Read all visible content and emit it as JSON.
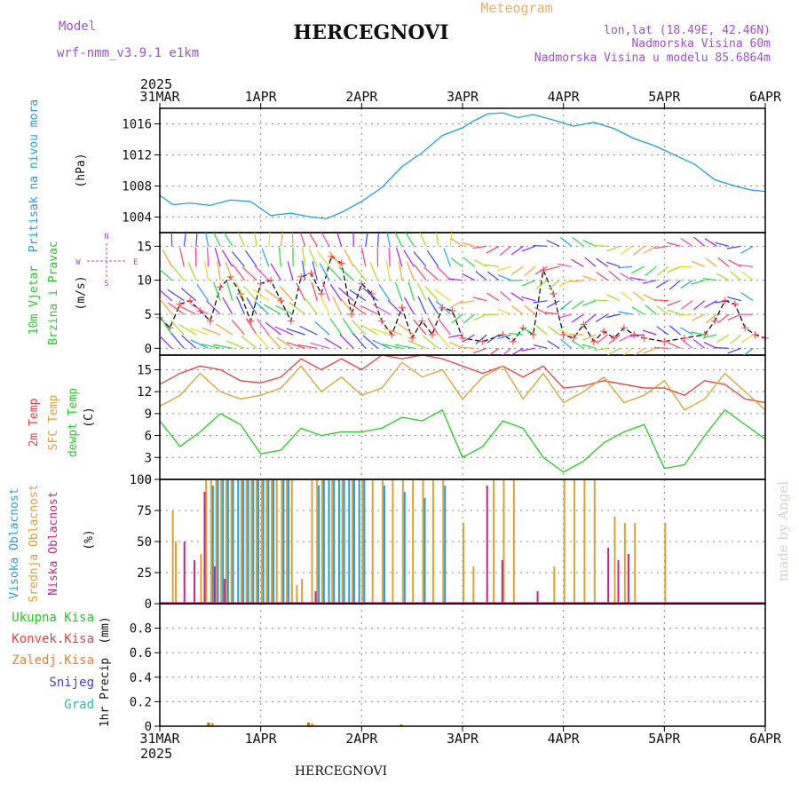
{
  "header": {
    "model_label": "Model",
    "model_name": "wrf-nmm_v3.9.1 e1km",
    "station": "HERCEGNOVI",
    "chart_kind": "Meteogram",
    "lonlat": "lon,lat (18.49E, 42.46N)",
    "elevation": "Nadmorska Visina 60m",
    "model_elevation": "Nadmorska Visina u modelu 85.6864m",
    "footer_station": "HERCEGNOVI",
    "credit": "made by Angel"
  },
  "time_axis": {
    "labels": [
      "31MAR",
      "1APR",
      "2APR",
      "3APR",
      "4APR",
      "5APR",
      "6APR"
    ],
    "year": "2025",
    "start_day": 0,
    "end_day": 6
  },
  "colors": {
    "pressure": "#1ea0e0",
    "temp2m": "#e84040",
    "sfc": "#e0a030",
    "dewpt": "#22cc22",
    "high_cloud": "#1ea0e0",
    "mid_cloud": "#e0a030",
    "low_cloud": "#cc2288",
    "total_precip": "#22cc22",
    "conv_precip": "#e84040",
    "frz_precip": "#f08030",
    "snow": "#4040e0",
    "hail": "#20c0c0",
    "wind_label": "#22cc22",
    "wind_compass": "#a050d0"
  },
  "chart_data": [
    {
      "id": "pressure",
      "type": "line",
      "ylabel_title": "Pritisak na nivou mora",
      "ylabel_unit": "(hPa)",
      "yticks": [
        "1004",
        "1008",
        "1012",
        "1016"
      ],
      "ylim": [
        1002,
        1018
      ],
      "series": [
        {
          "x": [
            0,
            0.13,
            0.3,
            0.5,
            0.7,
            0.9,
            1.1,
            1.3,
            1.5,
            1.65,
            1.8,
            2.0,
            2.2,
            2.4,
            2.6,
            2.8,
            3.0,
            3.1,
            3.25,
            3.4,
            3.55,
            3.7,
            3.9,
            4.1,
            4.3,
            4.5,
            4.7,
            4.9,
            5.1,
            5.3,
            5.5,
            5.7,
            5.85,
            6.0
          ],
          "y": [
            1006.8,
            1005.6,
            1005.8,
            1005.5,
            1006.2,
            1006.0,
            1004.2,
            1004.5,
            1004.0,
            1003.8,
            1004.6,
            1006.0,
            1007.8,
            1010.5,
            1012.3,
            1014.5,
            1015.5,
            1016.3,
            1017.3,
            1017.4,
            1016.8,
            1017.2,
            1016.5,
            1015.7,
            1016.2,
            1015.4,
            1014.1,
            1013.2,
            1012.0,
            1010.8,
            1008.8,
            1008.0,
            1007.5,
            1007.3
          ]
        }
      ]
    },
    {
      "id": "wind",
      "type": "line",
      "ylabel_title": "10m Vjetar",
      "ylabel_title2": "Brzina i Pravac",
      "ylabel_unit": "(m/s)",
      "compass": {
        "n": "N",
        "s": "S",
        "w": "W",
        "e": "E"
      },
      "yticks": [
        "0",
        "5",
        "10",
        "15"
      ],
      "ylim": [
        -1,
        17
      ],
      "series": [
        {
          "x": [
            0,
            0.1,
            0.2,
            0.3,
            0.4,
            0.5,
            0.6,
            0.7,
            0.8,
            0.9,
            1.0,
            1.1,
            1.2,
            1.3,
            1.4,
            1.5,
            1.6,
            1.7,
            1.8,
            1.9,
            2.0,
            2.1,
            2.2,
            2.3,
            2.4,
            2.5,
            2.6,
            2.7,
            2.8,
            2.9,
            3.0,
            3.2,
            3.4,
            3.5,
            3.6,
            3.7,
            3.8,
            3.9,
            4.0,
            4.1,
            4.2,
            4.3,
            4.4,
            4.5,
            4.6,
            4.7,
            4.8,
            5.0,
            5.2,
            5.4,
            5.5,
            5.6,
            5.7,
            5.8,
            5.9,
            6.0
          ],
          "y": [
            4.5,
            3.0,
            6.5,
            7.0,
            5.5,
            4.0,
            9.0,
            10.5,
            8.0,
            4.0,
            9.5,
            10.0,
            7.0,
            4.0,
            10.5,
            11.0,
            8.0,
            13.5,
            12.5,
            5.0,
            9.5,
            8.0,
            4.0,
            2.0,
            6.0,
            1.5,
            4.0,
            2.0,
            6.0,
            5.5,
            1.5,
            1.0,
            2.0,
            1.0,
            3.0,
            2.0,
            11.5,
            8.0,
            2.0,
            1.5,
            3.5,
            1.0,
            2.5,
            1.5,
            3.0,
            2.0,
            1.5,
            1.0,
            1.5,
            2.0,
            4.0,
            7.0,
            6.5,
            3.0,
            2.0,
            1.5
          ]
        }
      ]
    },
    {
      "id": "temperature",
      "type": "line",
      "ylabel_title": "2m Temp",
      "ylabel_title2": "SFC Temp",
      "ylabel_title3": "dewpt Temp",
      "ylabel_unit": "(C)",
      "yticks": [
        "0",
        "3",
        "6",
        "9",
        "12",
        "15"
      ],
      "ylim": [
        0,
        17
      ],
      "series": [
        {
          "name": "2m Temp",
          "x": [
            0,
            0.2,
            0.4,
            0.6,
            0.8,
            1.0,
            1.2,
            1.4,
            1.6,
            1.8,
            2.0,
            2.2,
            2.4,
            2.6,
            2.8,
            3.0,
            3.2,
            3.4,
            3.6,
            3.8,
            4.0,
            4.2,
            4.4,
            4.6,
            4.8,
            5.0,
            5.2,
            5.4,
            5.6,
            5.8,
            6.0
          ],
          "y": [
            13.0,
            14.5,
            15.5,
            15.0,
            13.5,
            13.2,
            14.0,
            16.5,
            15.0,
            16.5,
            15.0,
            17.0,
            16.5,
            17.0,
            16.5,
            15.5,
            14.5,
            15.5,
            14.0,
            15.5,
            12.5,
            12.8,
            13.5,
            13.0,
            12.5,
            12.5,
            11.5,
            13.5,
            13.0,
            11.0,
            10.5
          ]
        },
        {
          "name": "SFC Temp",
          "x": [
            0,
            0.2,
            0.4,
            0.6,
            0.8,
            1.0,
            1.2,
            1.4,
            1.6,
            1.8,
            2.0,
            2.2,
            2.4,
            2.6,
            2.8,
            3.0,
            3.2,
            3.4,
            3.6,
            3.8,
            4.0,
            4.2,
            4.4,
            4.6,
            4.8,
            5.0,
            5.2,
            5.4,
            5.6,
            5.8,
            6.0
          ],
          "y": [
            10.0,
            11.5,
            14.5,
            12.0,
            11.0,
            11.5,
            12.5,
            15.5,
            12.0,
            14.0,
            11.5,
            12.5,
            16.0,
            14.0,
            15.0,
            11.0,
            14.0,
            15.5,
            11.0,
            14.5,
            10.5,
            12.0,
            14.0,
            10.5,
            11.5,
            13.5,
            9.5,
            11.0,
            14.5,
            12.0,
            9.5
          ]
        },
        {
          "name": "dewpt Temp",
          "x": [
            0,
            0.2,
            0.4,
            0.6,
            0.8,
            1.0,
            1.2,
            1.4,
            1.6,
            1.8,
            2.0,
            2.2,
            2.4,
            2.6,
            2.8,
            3.0,
            3.2,
            3.4,
            3.6,
            3.8,
            4.0,
            4.2,
            4.4,
            4.6,
            4.8,
            5.0,
            5.2,
            5.4,
            5.6,
            5.8,
            6.0
          ],
          "y": [
            8.0,
            4.5,
            6.5,
            9.0,
            7.5,
            3.5,
            4.0,
            7.0,
            6.0,
            6.5,
            6.5,
            7.0,
            8.5,
            8.0,
            9.5,
            3.0,
            4.5,
            8.0,
            7.0,
            3.0,
            1.0,
            2.5,
            5.0,
            6.5,
            7.5,
            1.5,
            2.0,
            6.0,
            9.5,
            7.5,
            5.5
          ]
        }
      ]
    },
    {
      "id": "clouds",
      "type": "bar",
      "ylabel_title": "Visoka Oblacnost",
      "ylabel_title2": "Srednja Oblacnost",
      "ylabel_title3": "Niska Oblacnost",
      "ylabel_unit": "(%)",
      "yticks": [
        "0",
        "25",
        "50",
        "75",
        "100"
      ],
      "ylim": [
        0,
        100
      ],
      "series": [
        {
          "name": "Srednja Oblacnost",
          "x": [
            0.12,
            0.15,
            0.4,
            0.45,
            0.5,
            0.55,
            0.6,
            0.65,
            0.7,
            0.8,
            0.85,
            0.9,
            0.95,
            1.0,
            1.05,
            1.1,
            1.15,
            1.2,
            1.25,
            1.3,
            1.35,
            1.4,
            1.5,
            1.55,
            1.6,
            1.7,
            1.8,
            1.9,
            2.0,
            2.1,
            2.2,
            2.3,
            2.4,
            2.5,
            2.6,
            2.7,
            2.8,
            3.0,
            3.1,
            3.3,
            3.4,
            3.5,
            3.9,
            4.0,
            4.1,
            4.2,
            4.3,
            4.5,
            4.6,
            4.7,
            5.0
          ],
          "y": [
            75,
            50,
            40,
            100,
            100,
            100,
            100,
            100,
            100,
            100,
            100,
            100,
            100,
            100,
            100,
            100,
            100,
            100,
            100,
            100,
            15,
            20,
            100,
            100,
            100,
            100,
            100,
            100,
            100,
            100,
            100,
            100,
            100,
            100,
            100,
            100,
            100,
            65,
            30,
            100,
            100,
            100,
            30,
            100,
            100,
            100,
            100,
            70,
            65,
            65,
            65
          ]
        },
        {
          "name": "Visoka Oblacnost",
          "x": [
            0.5,
            0.55,
            0.6,
            0.65,
            0.7,
            0.75,
            0.8,
            0.85,
            0.9,
            0.95,
            1.0,
            1.05,
            1.1,
            1.2,
            1.25,
            1.55,
            1.6,
            1.65,
            1.7,
            1.75,
            1.8,
            1.85,
            1.9,
            1.95,
            2.0,
            2.2,
            2.4,
            2.6,
            2.8
          ],
          "y": [
            95,
            100,
            100,
            100,
            100,
            100,
            100,
            100,
            100,
            100,
            100,
            100,
            100,
            100,
            100,
            95,
            100,
            100,
            100,
            100,
            100,
            100,
            100,
            100,
            100,
            95,
            90,
            85,
            95
          ]
        },
        {
          "name": "Niska Oblacnost",
          "x": [
            0.2,
            0.3,
            0.4,
            0.5,
            0.6,
            1.5,
            3.2,
            3.35,
            3.7,
            4.4,
            4.5,
            4.6
          ],
          "y": [
            50,
            35,
            90,
            30,
            20,
            10,
            95,
            35,
            10,
            45,
            35,
            40
          ]
        }
      ]
    },
    {
      "id": "precip",
      "type": "bar",
      "ylabel_title": "1hr Precip",
      "ylabel_unit": "(mm)",
      "legend": [
        "Ukupna Kisa",
        "Konvek.Kisa",
        "Zaledj.Kisa",
        "Snijeg",
        "Grad"
      ],
      "yticks": [
        "0",
        "0.2",
        "0.4",
        "0.6",
        "0.8"
      ],
      "ylim": [
        0,
        1.0
      ],
      "series": [
        {
          "name": "Ukupna Kisa",
          "x": [
            0.47,
            1.46,
            2.38
          ],
          "y": [
            0.03,
            0.03,
            0.015
          ]
        },
        {
          "name": "Zaledj.Kisa",
          "x": [
            0.49,
            1.48
          ],
          "y": [
            0.025,
            0.02
          ]
        }
      ]
    }
  ]
}
